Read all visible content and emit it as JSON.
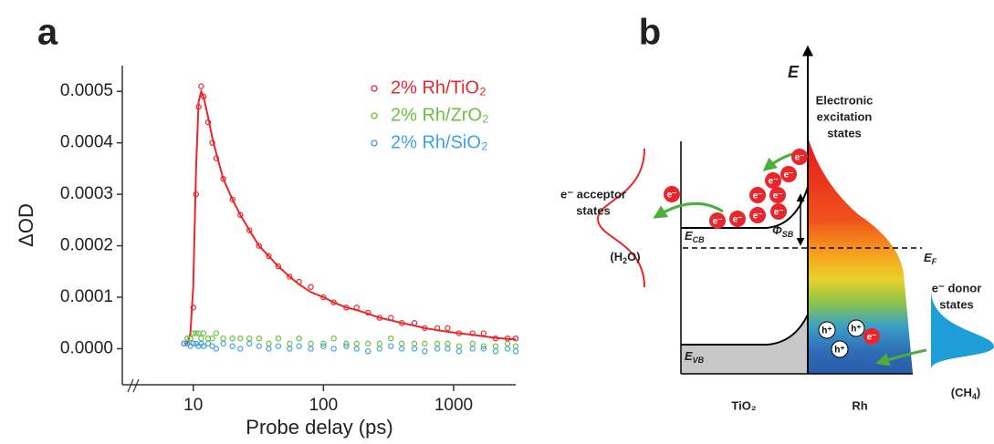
{
  "chart_data": {
    "type": "scatter",
    "panel_label": "a",
    "xlabel": "Probe delay (ps)",
    "ylabel": "ΔOD",
    "xscale": "log",
    "xlim": [
      2.85,
      3000
    ],
    "xticks": [
      10,
      100,
      1000
    ],
    "ylim": [
      -7e-05,
      0.00055
    ],
    "yticks": [
      {
        "value": 0,
        "label": "0.0000"
      },
      0.0001,
      0.0002,
      0.0003,
      0.0004,
      0.0005
    ],
    "legend": "upper right",
    "x": [
      8.5,
      9,
      9.5,
      10,
      10.5,
      11,
      11.5,
      12,
      13,
      14,
      15,
      17,
      20,
      23,
      27,
      32,
      38,
      45,
      55,
      65,
      80,
      100,
      120,
      150,
      180,
      220,
      270,
      330,
      400,
      500,
      600,
      750,
      900,
      1100,
      1400,
      1700,
      2100,
      2600,
      3000
    ],
    "series": [
      {
        "name": "2% Rh/TiO₂",
        "color": "#e8262b",
        "values": [
          1e-05,
          1e-05,
          2e-05,
          8e-05,
          0.0003,
          0.00047,
          0.00051,
          0.00049,
          0.00044,
          0.0004,
          0.00037,
          0.00033,
          0.00029,
          0.00026,
          0.00023,
          0.0002,
          0.00018,
          0.00016,
          0.00014,
          0.00013,
          0.00012,
          0.0001,
          9e-05,
          8e-05,
          8e-05,
          7e-05,
          6e-05,
          6e-05,
          5e-05,
          5e-05,
          4e-05,
          4e-05,
          4e-05,
          3e-05,
          3e-05,
          3e-05,
          2e-05,
          2e-05,
          2e-05
        ],
        "fit_values": [
          1e-05,
          1e-05,
          3e-05,
          0.00012,
          0.00035,
          0.00048,
          0.0005,
          0.00049,
          0.00045,
          0.00041,
          0.00038,
          0.00033,
          0.00029,
          0.00026,
          0.00023,
          0.0002,
          0.00018,
          0.00016,
          0.00014,
          0.000125,
          0.00011,
          0.0001,
          9e-05,
          8e-05,
          7.5e-05,
          6.8e-05,
          6e-05,
          5.5e-05,
          5e-05,
          4.5e-05,
          4e-05,
          3.6e-05,
          3.3e-05,
          3e-05,
          2.7e-05,
          2.4e-05,
          2.1e-05,
          1.9e-05,
          1.8e-05
        ]
      },
      {
        "name": "2% Rh/ZrO₂",
        "color": "#6cbf3f",
        "values": [
          1e-05,
          2e-05,
          2e-05,
          3e-05,
          3e-05,
          3e-05,
          2e-05,
          3e-05,
          2e-05,
          2e-05,
          3e-05,
          2e-05,
          2e-05,
          2e-05,
          2e-05,
          2e-05,
          1e-05,
          2e-05,
          1e-05,
          2e-05,
          1e-05,
          1e-05,
          2e-05,
          1e-05,
          1e-05,
          1e-05,
          1e-05,
          2e-05,
          1e-05,
          1e-05,
          1e-05,
          1e-05,
          1e-05,
          5e-06,
          1e-05,
          5e-06,
          5e-06,
          1e-05,
          5e-06
        ]
      },
      {
        "name": "2% Rh/SiO₂",
        "color": "#3ba4e0",
        "values": [
          1e-05,
          1e-05,
          5e-06,
          1e-05,
          1e-05,
          5e-06,
          1e-05,
          5e-06,
          1e-05,
          5e-06,
          0.0,
          1e-05,
          5e-06,
          0.0,
          1e-05,
          5e-06,
          0.0,
          5e-06,
          0.0,
          5e-06,
          0.0,
          5e-06,
          0.0,
          5e-06,
          0.0,
          -5e-06,
          0.0,
          5e-06,
          0.0,
          0.0,
          -5e-06,
          0.0,
          0.0,
          -5e-06,
          0.0,
          0.0,
          -5e-06,
          0.0,
          -5e-06
        ]
      }
    ]
  },
  "diagram": {
    "panel_label": "b",
    "energy_axis": "E",
    "excitation_label": [
      "Electronic",
      "excitation",
      "states"
    ],
    "acceptor_label": [
      "e⁻ acceptor",
      "states"
    ],
    "acceptor_species": {
      "open": "(H",
      "sub": "2",
      "close": "O)"
    },
    "donor_label": [
      "e⁻ donor",
      "states"
    ],
    "donor_species": {
      "open": "(CH",
      "sub": "4",
      "close": ")"
    },
    "cb_label": {
      "main": "E",
      "sub": "CB"
    },
    "vb_label": {
      "main": "E",
      "sub": "VB"
    },
    "fermi_label": {
      "main": "E",
      "sub": "F"
    },
    "barrier_label": {
      "main": "Φ",
      "sub": "SB"
    },
    "semiconductor": "TiO₂",
    "metal": "Rh",
    "electron": "e⁻",
    "hole": "h⁺"
  }
}
